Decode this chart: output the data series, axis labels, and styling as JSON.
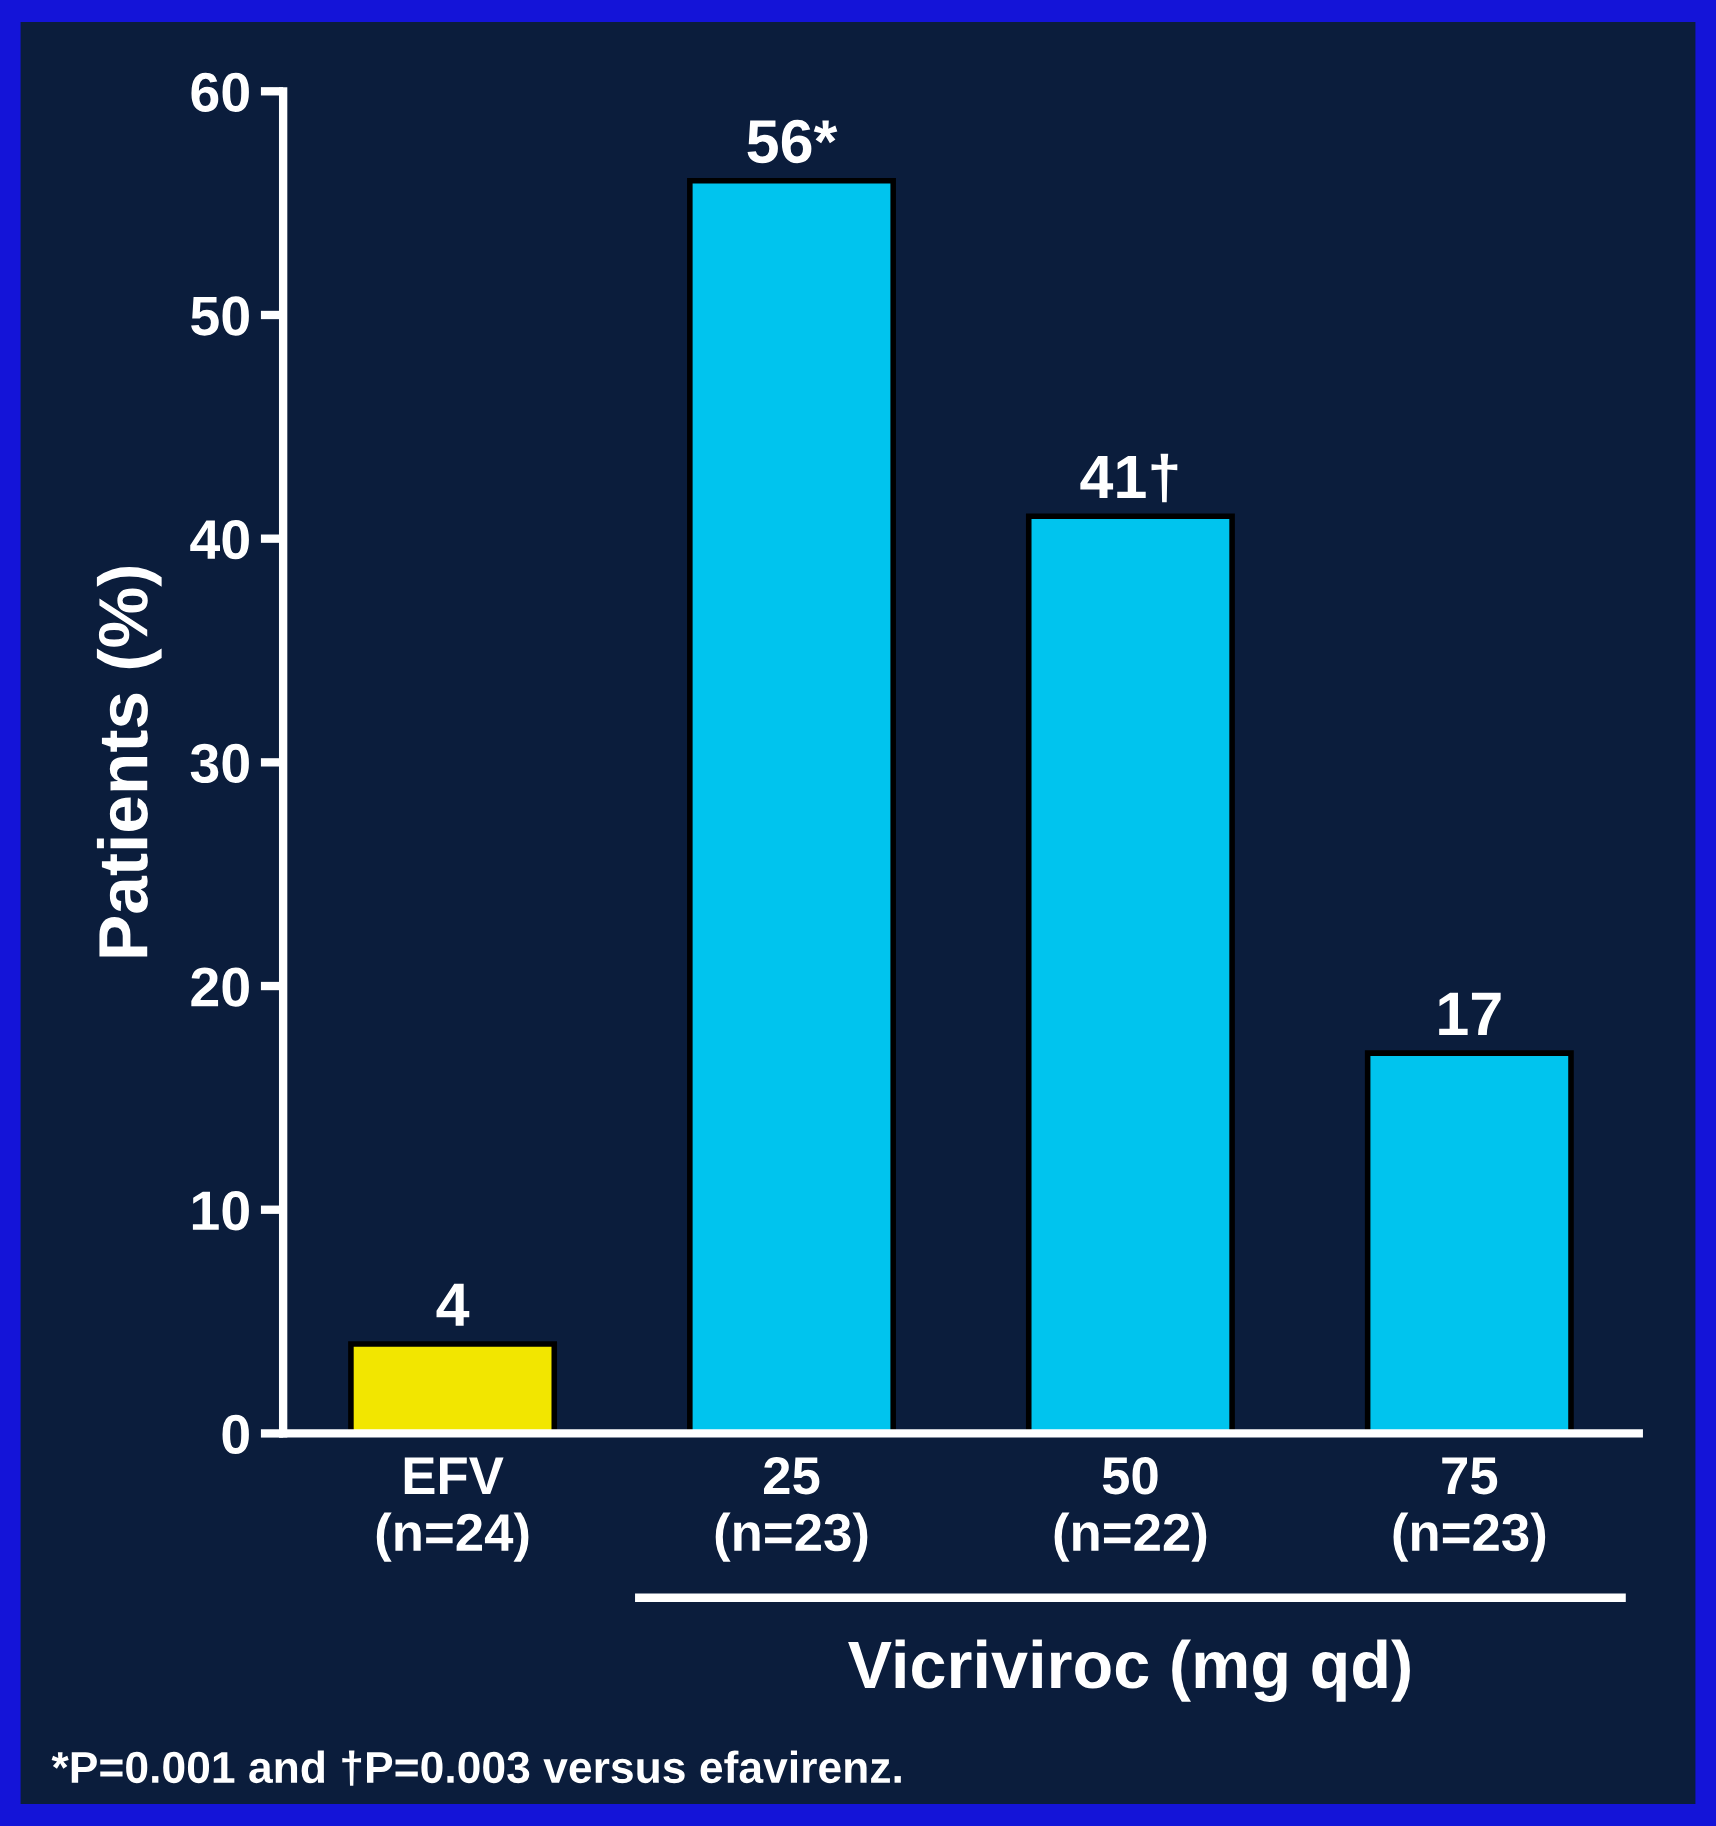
{
  "chart_data": {
    "type": "bar",
    "categories": [
      "EFV\n(n=24)",
      "25\n(n=23)",
      "50\n(n=22)",
      "75\n(n=23)"
    ],
    "values": [
      4,
      56,
      41,
      17
    ],
    "colors": [
      "#f2e600",
      "#00c4ee",
      "#00c4ee",
      "#00c4ee"
    ],
    "value_labels": [
      "4",
      "56*",
      "41†",
      "17"
    ],
    "xlabel": "Vicriviroc (mg qd)",
    "ylabel": "Patients (%)",
    "ylim": [
      0,
      60
    ],
    "yticks": [
      0,
      10,
      20,
      30,
      40,
      50,
      60
    ],
    "grid": false,
    "legend": false,
    "annotations": [
      "*P=0.001 and †P=0.003 versus efavirenz."
    ]
  }
}
